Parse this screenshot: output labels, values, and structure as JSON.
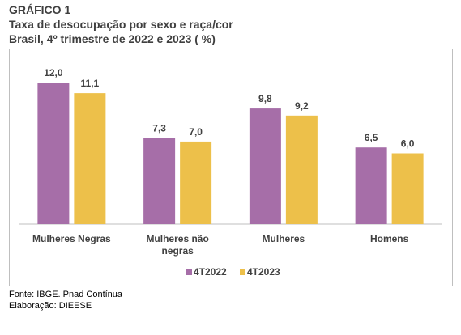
{
  "header": {
    "label": "GRÁFICO 1",
    "title": "Taxa de desocupação por sexo e raça/cor",
    "subtitle": "Brasil, 4º trimestre de 2022 e 2023 ( %)"
  },
  "chart_data": {
    "type": "bar",
    "categories": [
      [
        "Mulheres Negras"
      ],
      [
        "Mulheres não",
        "negras"
      ],
      [
        "Mulheres"
      ],
      [
        "Homens"
      ]
    ],
    "series": [
      {
        "name": "4T2022",
        "values": [
          12.0,
          7.3,
          9.8,
          6.5
        ],
        "labels": [
          "12,0",
          "7,3",
          "9,8",
          "6,5"
        ],
        "color": "#a66ea8"
      },
      {
        "name": "4T2023",
        "values": [
          11.1,
          7.0,
          9.2,
          6.0
        ],
        "labels": [
          "11,1",
          "7,0",
          "9,2",
          "6,0"
        ],
        "color": "#edc04a"
      }
    ],
    "ylim": [
      0,
      12.0
    ],
    "grid": false,
    "legend": "bottom-center"
  },
  "footer": {
    "source": "Fonte: IBGE. Pnad Contínua",
    "credit": "Elaboração: DIEESE"
  }
}
